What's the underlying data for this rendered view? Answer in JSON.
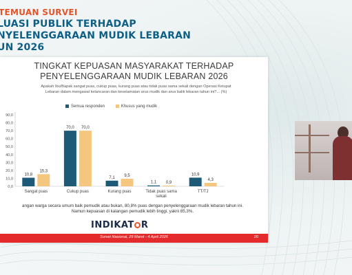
{
  "header": {
    "kicker": "TEMUAN SURVEI",
    "line1": "LUASI PUBLIK TERHADAP",
    "line2": "NYELENGGARAAN MUDIK LEBARAN",
    "line3": "UN 2026"
  },
  "slide": {
    "title_line1": "TINGKAT KEPUASAN MASYARAKAT TERHADAP",
    "title_line2": "PENYELENGGARAAN MUDIK LEBARAN 2026",
    "question_line1": "Apakah Ibu/Bapak sangat puas, cukup puas, kurang puas atau tidak puas sama sekali dengan Operasi Ketupat",
    "question_line2": "Lebaran dalam mengawal kelancaran dan keselamatan arus mudik dan arus balik lebaran tahun ini?... (%)",
    "conclusion_line1": "angan warga secara umum baik pemudik atau bukan, 80,8% puas dengan penyelenggaraan mudik lebaran tahun ini.",
    "conclusion_line2": "Namun kepuasan di kalangan pemudik lebih tinggi, yakni 85,3%.",
    "logo_pre": "INDIKAT",
    "logo_post": "R",
    "footer": "Survei Nasional, 29 Maret - 4 April 2026",
    "page_number": "20"
  },
  "colors": {
    "series1": "#1c5a78",
    "series2": "#f5c77e",
    "footer": "#e42a2a",
    "header": "#0e5f86"
  },
  "chart_data": {
    "type": "bar",
    "categories": [
      [
        "Sangat puas"
      ],
      [
        "Cukup puas"
      ],
      [
        "Kurang puas"
      ],
      [
        "Tidak puas sama",
        "sekali"
      ],
      [
        "TT/TJ"
      ]
    ],
    "series": [
      {
        "name": "Semua responden",
        "values": [
          10.8,
          70.0,
          7.1,
          1.1,
          10.9
        ],
        "labels": [
          "10,8",
          "70,0",
          "7,1",
          "1,1",
          "10,9"
        ]
      },
      {
        "name": "Khusus yang mudik",
        "values": [
          15.3,
          70.0,
          9.5,
          0.9,
          4.3
        ],
        "labels": [
          "15,3",
          "70,0",
          "9,5",
          "0,9",
          "4,3"
        ]
      }
    ],
    "yticks": [
      "0,0",
      "10,0",
      "20,0",
      "30,0",
      "40,0",
      "50,0",
      "60,0",
      "70,0",
      "80,0",
      "90,0"
    ],
    "ylim": [
      0,
      90
    ],
    "legend_position": "top-center",
    "grid": false
  }
}
